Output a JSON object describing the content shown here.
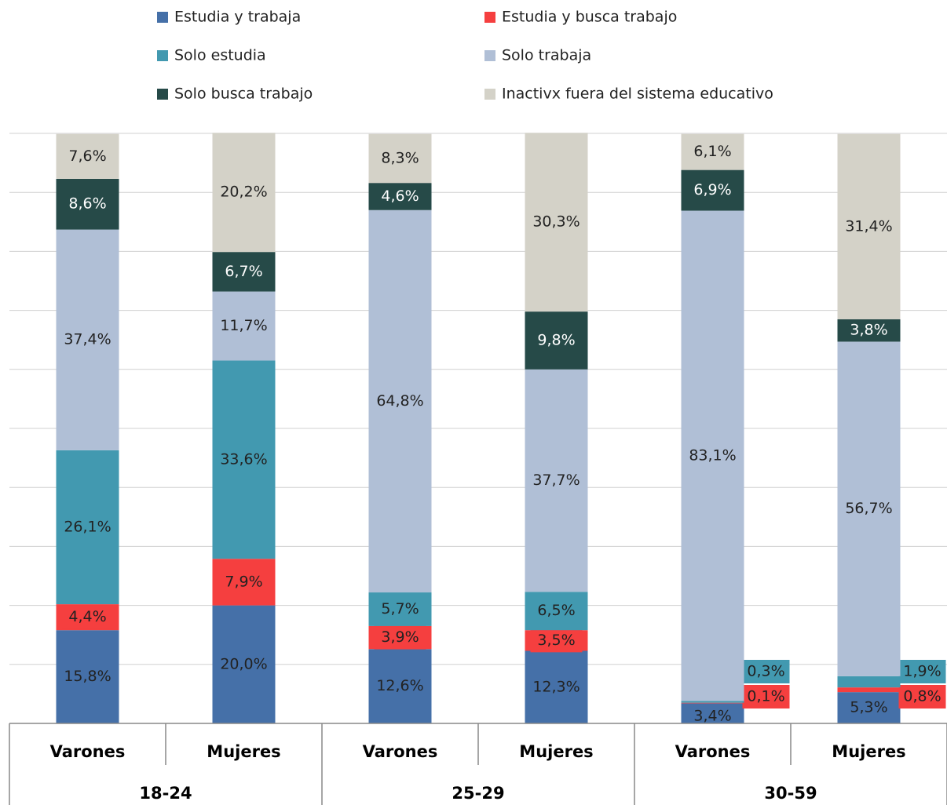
{
  "chart_data": {
    "type": "stacked_bar_100",
    "categories": [
      "Varones",
      "Mujeres",
      "Varones",
      "Mujeres",
      "Varones",
      "Mujeres"
    ],
    "groups": [
      "18-24",
      "25-29",
      "30-59"
    ],
    "ylim": [
      0,
      100
    ],
    "yticks": [
      0,
      10,
      20,
      30,
      40,
      50,
      60,
      70,
      80,
      90,
      100
    ],
    "grid": true,
    "legend": "top",
    "series": [
      {
        "name": "Estudia y trabaja",
        "color": "#4570a8",
        "values": [
          15.8,
          20.0,
          12.6,
          12.3,
          3.4,
          5.3
        ],
        "value_labels": [
          "15,8%",
          "20,0%",
          "12,6%",
          "12,3%",
          "3,4%",
          "5,3%"
        ]
      },
      {
        "name": "Estudia y busca trabajo",
        "color": "#f53f3f",
        "values": [
          4.4,
          7.9,
          3.9,
          3.5,
          0.1,
          0.8
        ],
        "value_labels": [
          "4,4%",
          "7,9%",
          "3,9%",
          "3,5%",
          "0,1%",
          "0,8%"
        ]
      },
      {
        "name": "Solo estudia",
        "color": "#4299b0",
        "values": [
          26.1,
          33.6,
          5.7,
          6.5,
          0.3,
          1.9
        ],
        "value_labels": [
          "26,1%",
          "33,6%",
          "5,7%",
          "6,5%",
          "0,3%",
          "1,9%"
        ]
      },
      {
        "name": "Solo trabaja",
        "color": "#b0bfd6",
        "values": [
          37.4,
          11.7,
          64.8,
          37.7,
          83.1,
          56.7
        ],
        "value_labels": [
          "37,4%",
          "11,7%",
          "64,8%",
          "37,7%",
          "83,1%",
          "56,7%"
        ]
      },
      {
        "name": "Solo busca trabajo",
        "color": "#264a48",
        "values": [
          8.6,
          6.7,
          4.6,
          9.8,
          6.9,
          3.8
        ],
        "value_labels": [
          "8,6%",
          "6,7%",
          "4,6%",
          "9,8%",
          "6,9%",
          "3,8%"
        ]
      },
      {
        "name": "Inactivx fuera del sistema educativo",
        "color": "#d4d2c8",
        "values": [
          7.6,
          20.2,
          8.3,
          30.3,
          6.1,
          31.4
        ],
        "value_labels": [
          "7,6%",
          "20,2%",
          "8,3%",
          "30,3%",
          "6,1%",
          "31,4%"
        ]
      }
    ]
  }
}
